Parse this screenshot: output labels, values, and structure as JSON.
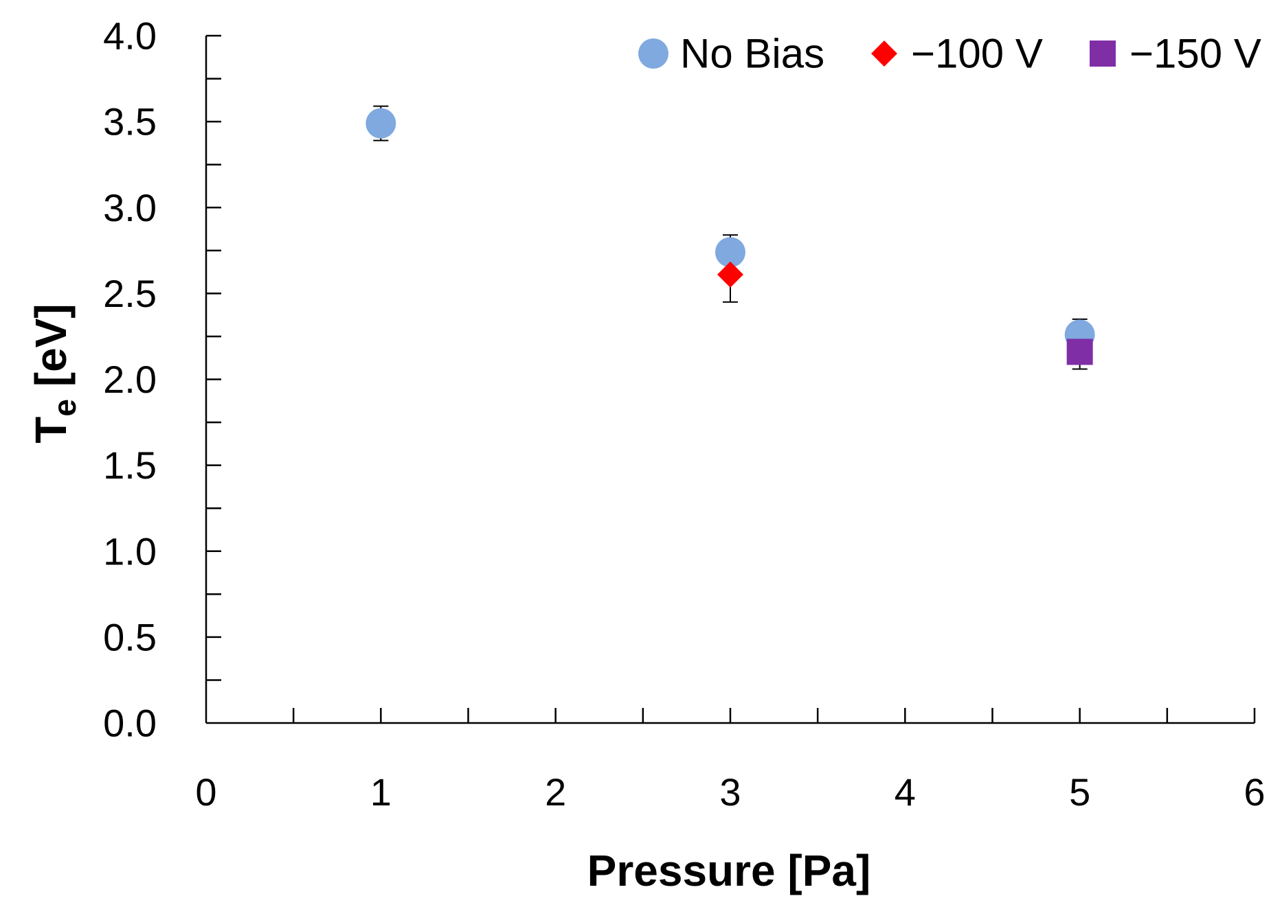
{
  "chart_data": {
    "type": "scatter",
    "title": "",
    "xlabel": "Pressure [Pa]",
    "ylabel_main": "T",
    "ylabel_subscript": "e",
    "ylabel_unit": " [eV]",
    "xlim": [
      0,
      6
    ],
    "ylim": [
      0,
      4
    ],
    "x_ticks": [
      0,
      1,
      2,
      3,
      4,
      5,
      6
    ],
    "x_tick_labels": [
      "0",
      "1",
      "2",
      "3",
      "4",
      "5",
      "6"
    ],
    "y_ticks": [
      0,
      0.5,
      1,
      1.5,
      2,
      2.5,
      3,
      3.5,
      4
    ],
    "y_tick_labels": [
      "0.0",
      "0.5",
      "1.0",
      "1.5",
      "2.0",
      "2.5",
      "3.0",
      "3.5",
      "4.0"
    ],
    "grid": false,
    "legend_position": "top-right",
    "series": [
      {
        "name": "No Bias",
        "marker": "circle",
        "color": "#7fa9df",
        "points": [
          {
            "x": 1,
            "y": 3.49,
            "err_lo": 0.1,
            "err_hi": 0.1
          },
          {
            "x": 3,
            "y": 2.74,
            "err_lo": 0.0,
            "err_hi": 0.1
          },
          {
            "x": 5,
            "y": 2.26,
            "err_lo": 0.0,
            "err_hi": 0.09
          }
        ]
      },
      {
        "name": "−100 V",
        "marker": "diamond",
        "color": "#ff0000",
        "points": [
          {
            "x": 3,
            "y": 2.61,
            "err_lo": 0.16,
            "err_hi": 0.0
          }
        ]
      },
      {
        "name": "−150 V",
        "marker": "square",
        "color": "#7f2ea6",
        "points": [
          {
            "x": 5,
            "y": 2.16,
            "err_lo": 0.1,
            "err_hi": 0.0
          }
        ]
      }
    ]
  }
}
